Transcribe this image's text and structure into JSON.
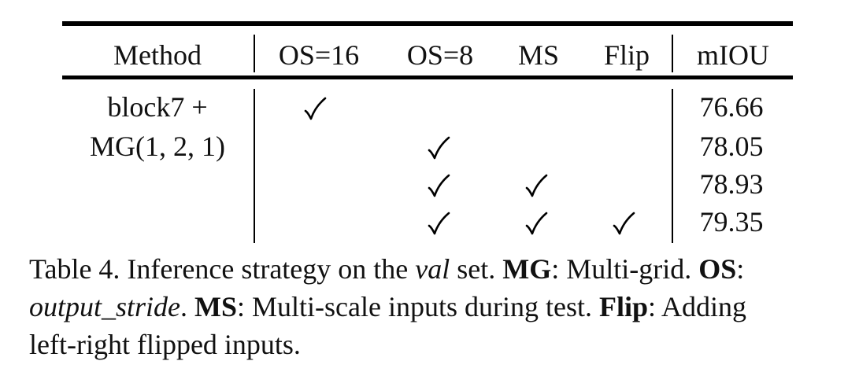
{
  "table": {
    "headers": {
      "method": "Method",
      "os16": "OS=16",
      "os8": "OS=8",
      "ms": "MS",
      "flip": "Flip",
      "miou": "mIOU"
    },
    "method_cell": {
      "line1": "block7 +",
      "line2": "MG(1, 2, 1)"
    },
    "check_glyph": "✓",
    "rows": [
      {
        "os16": true,
        "os8": false,
        "ms": false,
        "flip": false,
        "miou": "76.66"
      },
      {
        "os16": false,
        "os8": true,
        "ms": false,
        "flip": false,
        "miou": "78.05"
      },
      {
        "os16": false,
        "os8": true,
        "ms": true,
        "flip": false,
        "miou": "78.93"
      },
      {
        "os16": false,
        "os8": true,
        "ms": true,
        "flip": true,
        "miou": "79.35"
      }
    ]
  },
  "caption": {
    "l1_a": "Table 4. Inference strategy on the ",
    "l1_val": "val",
    "l1_b": " set. ",
    "l1_mg": "MG",
    "l1_c": ": Multi-grid. ",
    "l1_os": "OS",
    "l1_d": ":",
    "l2_os_italic": "output_stride",
    "l2_a": ". ",
    "l2_ms": "MS",
    "l2_b": ": Multi-scale inputs during test. ",
    "l2_flip": "Flip",
    "l2_c": ": Adding",
    "l3": "left-right flipped inputs."
  }
}
